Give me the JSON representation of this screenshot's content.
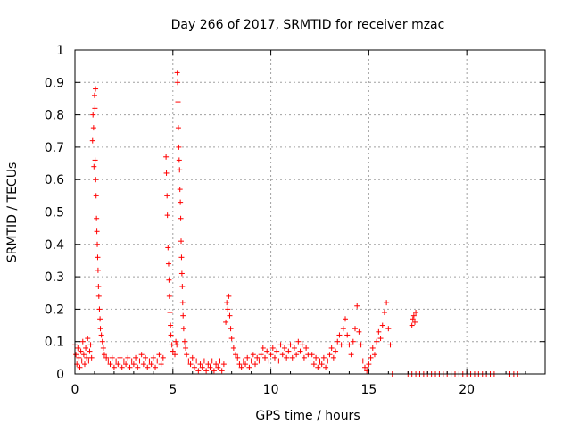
{
  "chart_data": {
    "type": "scatter",
    "title": "Day 266 of 2017, SRMTID for receiver mzac",
    "xlabel": "GPS time / hours",
    "ylabel": "SRMTID / TECUs",
    "xlim": [
      0,
      24
    ],
    "ylim": [
      0,
      1
    ],
    "xticks": [
      0,
      5,
      10,
      15,
      20
    ],
    "xtick_labels": [
      "0",
      "5",
      "10",
      "15",
      "20"
    ],
    "yticks": [
      0,
      0.1,
      0.2,
      0.3,
      0.4,
      0.5,
      0.6,
      0.7,
      0.8,
      0.9,
      1
    ],
    "ytick_labels": [
      "0",
      "0.1",
      "0.2",
      "0.3",
      "0.4",
      "0.5",
      "0.6",
      "0.7",
      "0.8",
      "0.9",
      "1"
    ],
    "grid": true,
    "marker": "+",
    "marker_color": "#ff0000",
    "series": [
      {
        "name": "SRMTID",
        "points": [
          [
            0.0,
            0.09
          ],
          [
            0.05,
            0.06
          ],
          [
            0.1,
            0.03
          ],
          [
            0.15,
            0.08
          ],
          [
            0.2,
            0.05
          ],
          [
            0.25,
            0.02
          ],
          [
            0.3,
            0.07
          ],
          [
            0.35,
            0.04
          ],
          [
            0.4,
            0.1
          ],
          [
            0.45,
            0.06
          ],
          [
            0.5,
            0.03
          ],
          [
            0.55,
            0.08
          ],
          [
            0.6,
            0.05
          ],
          [
            0.65,
            0.11
          ],
          [
            0.7,
            0.04
          ],
          [
            0.75,
            0.07
          ],
          [
            0.8,
            0.09
          ],
          [
            0.85,
            0.05
          ],
          [
            0.9,
            0.72
          ],
          [
            0.92,
            0.8
          ],
          [
            0.95,
            0.76
          ],
          [
            0.97,
            0.64
          ],
          [
            1.0,
            0.86
          ],
          [
            1.02,
            0.82
          ],
          [
            1.03,
            0.66
          ],
          [
            1.05,
            0.88
          ],
          [
            1.06,
            0.6
          ],
          [
            1.08,
            0.55
          ],
          [
            1.1,
            0.48
          ],
          [
            1.12,
            0.44
          ],
          [
            1.14,
            0.4
          ],
          [
            1.16,
            0.36
          ],
          [
            1.18,
            0.32
          ],
          [
            1.2,
            0.27
          ],
          [
            1.22,
            0.24
          ],
          [
            1.25,
            0.2
          ],
          [
            1.28,
            0.17
          ],
          [
            1.3,
            0.14
          ],
          [
            1.35,
            0.12
          ],
          [
            1.4,
            0.1
          ],
          [
            1.45,
            0.08
          ],
          [
            1.5,
            0.06
          ],
          [
            1.6,
            0.05
          ],
          [
            1.7,
            0.04
          ],
          [
            1.8,
            0.03
          ],
          [
            1.9,
            0.05
          ],
          [
            2.0,
            0.02
          ],
          [
            2.1,
            0.04
          ],
          [
            2.2,
            0.03
          ],
          [
            2.3,
            0.05
          ],
          [
            2.4,
            0.02
          ],
          [
            2.5,
            0.04
          ],
          [
            2.6,
            0.03
          ],
          [
            2.7,
            0.05
          ],
          [
            2.8,
            0.02
          ],
          [
            2.9,
            0.04
          ],
          [
            3.0,
            0.03
          ],
          [
            3.1,
            0.05
          ],
          [
            3.2,
            0.02
          ],
          [
            3.3,
            0.04
          ],
          [
            3.4,
            0.06
          ],
          [
            3.5,
            0.03
          ],
          [
            3.6,
            0.05
          ],
          [
            3.7,
            0.02
          ],
          [
            3.8,
            0.04
          ],
          [
            3.9,
            0.03
          ],
          [
            4.0,
            0.05
          ],
          [
            4.1,
            0.02
          ],
          [
            4.2,
            0.04
          ],
          [
            4.3,
            0.06
          ],
          [
            4.4,
            0.03
          ],
          [
            4.5,
            0.05
          ],
          [
            4.65,
            0.67
          ],
          [
            4.67,
            0.62
          ],
          [
            4.7,
            0.55
          ],
          [
            4.72,
            0.49
          ],
          [
            4.75,
            0.39
          ],
          [
            4.78,
            0.34
          ],
          [
            4.8,
            0.29
          ],
          [
            4.82,
            0.24
          ],
          [
            4.85,
            0.19
          ],
          [
            4.88,
            0.15
          ],
          [
            4.9,
            0.12
          ],
          [
            4.95,
            0.09
          ],
          [
            5.0,
            0.07
          ],
          [
            5.1,
            0.06
          ],
          [
            5.15,
            0.1
          ],
          [
            5.2,
            0.09
          ],
          [
            5.22,
            0.93
          ],
          [
            5.24,
            0.9
          ],
          [
            5.26,
            0.84
          ],
          [
            5.28,
            0.76
          ],
          [
            5.3,
            0.7
          ],
          [
            5.32,
            0.66
          ],
          [
            5.34,
            0.63
          ],
          [
            5.36,
            0.57
          ],
          [
            5.38,
            0.53
          ],
          [
            5.4,
            0.48
          ],
          [
            5.42,
            0.41
          ],
          [
            5.44,
            0.36
          ],
          [
            5.46,
            0.31
          ],
          [
            5.48,
            0.27
          ],
          [
            5.5,
            0.22
          ],
          [
            5.52,
            0.18
          ],
          [
            5.55,
            0.14
          ],
          [
            5.6,
            0.1
          ],
          [
            5.65,
            0.08
          ],
          [
            5.7,
            0.06
          ],
          [
            5.8,
            0.04
          ],
          [
            5.9,
            0.03
          ],
          [
            6.0,
            0.05
          ],
          [
            6.1,
            0.02
          ],
          [
            6.2,
            0.04
          ],
          [
            6.3,
            0.01
          ],
          [
            6.4,
            0.03
          ],
          [
            6.5,
            0.02
          ],
          [
            6.6,
            0.04
          ],
          [
            6.7,
            0.01
          ],
          [
            6.8,
            0.03
          ],
          [
            6.9,
            0.02
          ],
          [
            7.0,
            0.04
          ],
          [
            7.1,
            0.01
          ],
          [
            7.2,
            0.03
          ],
          [
            7.3,
            0.02
          ],
          [
            7.4,
            0.04
          ],
          [
            7.5,
            0.01
          ],
          [
            7.6,
            0.03
          ],
          [
            7.7,
            0.16
          ],
          [
            7.75,
            0.22
          ],
          [
            7.8,
            0.2
          ],
          [
            7.85,
            0.24
          ],
          [
            7.9,
            0.18
          ],
          [
            7.95,
            0.14
          ],
          [
            8.0,
            0.11
          ],
          [
            8.1,
            0.08
          ],
          [
            8.2,
            0.06
          ],
          [
            8.3,
            0.05
          ],
          [
            8.4,
            0.03
          ],
          [
            8.5,
            0.02
          ],
          [
            8.6,
            0.04
          ],
          [
            8.7,
            0.03
          ],
          [
            8.8,
            0.05
          ],
          [
            8.9,
            0.02
          ],
          [
            9.0,
            0.04
          ],
          [
            9.1,
            0.06
          ],
          [
            9.2,
            0.03
          ],
          [
            9.3,
            0.05
          ],
          [
            9.4,
            0.04
          ],
          [
            9.5,
            0.06
          ],
          [
            9.6,
            0.08
          ],
          [
            9.7,
            0.05
          ],
          [
            9.8,
            0.07
          ],
          [
            9.9,
            0.04
          ],
          [
            10.0,
            0.06
          ],
          [
            10.1,
            0.08
          ],
          [
            10.2,
            0.05
          ],
          [
            10.3,
            0.07
          ],
          [
            10.4,
            0.04
          ],
          [
            10.5,
            0.09
          ],
          [
            10.6,
            0.06
          ],
          [
            10.7,
            0.08
          ],
          [
            10.8,
            0.05
          ],
          [
            10.9,
            0.07
          ],
          [
            11.0,
            0.09
          ],
          [
            11.1,
            0.05
          ],
          [
            11.2,
            0.08
          ],
          [
            11.3,
            0.06
          ],
          [
            11.4,
            0.1
          ],
          [
            11.5,
            0.07
          ],
          [
            11.6,
            0.09
          ],
          [
            11.7,
            0.05
          ],
          [
            11.8,
            0.08
          ],
          [
            11.9,
            0.06
          ],
          [
            12.0,
            0.04
          ],
          [
            12.1,
            0.06
          ],
          [
            12.2,
            0.03
          ],
          [
            12.3,
            0.05
          ],
          [
            12.4,
            0.02
          ],
          [
            12.5,
            0.04
          ],
          [
            12.6,
            0.03
          ],
          [
            12.7,
            0.05
          ],
          [
            12.8,
            0.02
          ],
          [
            12.9,
            0.04
          ],
          [
            13.0,
            0.06
          ],
          [
            13.1,
            0.08
          ],
          [
            13.2,
            0.05
          ],
          [
            13.3,
            0.07
          ],
          [
            13.4,
            0.1
          ],
          [
            13.5,
            0.12
          ],
          [
            13.6,
            0.09
          ],
          [
            13.7,
            0.14
          ],
          [
            13.8,
            0.17
          ],
          [
            13.9,
            0.12
          ],
          [
            14.0,
            0.09
          ],
          [
            14.1,
            0.06
          ],
          [
            14.2,
            0.1
          ],
          [
            14.3,
            0.14
          ],
          [
            14.4,
            0.21
          ],
          [
            14.5,
            0.13
          ],
          [
            14.6,
            0.09
          ],
          [
            14.7,
            0.04
          ],
          [
            14.8,
            0.02
          ],
          [
            14.9,
            0.01
          ],
          [
            15.0,
            0.03
          ],
          [
            15.1,
            0.05
          ],
          [
            15.2,
            0.08
          ],
          [
            15.3,
            0.06
          ],
          [
            15.4,
            0.1
          ],
          [
            15.5,
            0.13
          ],
          [
            15.6,
            0.11
          ],
          [
            15.7,
            0.15
          ],
          [
            15.8,
            0.19
          ],
          [
            15.9,
            0.22
          ],
          [
            16.0,
            0.14
          ],
          [
            16.1,
            0.09
          ],
          [
            16.2,
            0.0
          ],
          [
            17.2,
            0.15
          ],
          [
            17.25,
            0.17
          ],
          [
            17.3,
            0.18
          ],
          [
            17.35,
            0.16
          ],
          [
            17.4,
            0.19
          ],
          [
            17.0,
            0.0
          ],
          [
            17.2,
            0.0
          ],
          [
            17.4,
            0.0
          ],
          [
            17.6,
            0.0
          ],
          [
            17.8,
            0.0
          ],
          [
            18.0,
            0.0
          ],
          [
            18.2,
            0.0
          ],
          [
            18.4,
            0.0
          ],
          [
            18.6,
            0.0
          ],
          [
            18.8,
            0.0
          ],
          [
            19.0,
            0.0
          ],
          [
            19.2,
            0.0
          ],
          [
            19.4,
            0.0
          ],
          [
            19.6,
            0.0
          ],
          [
            19.8,
            0.0
          ],
          [
            20.0,
            0.0
          ],
          [
            20.2,
            0.0
          ],
          [
            20.4,
            0.0
          ],
          [
            20.6,
            0.0
          ],
          [
            20.8,
            0.0
          ],
          [
            21.0,
            0.0
          ],
          [
            21.2,
            0.0
          ],
          [
            21.4,
            0.0
          ],
          [
            22.2,
            0.0
          ],
          [
            22.4,
            0.0
          ],
          [
            22.6,
            0.0
          ]
        ]
      }
    ]
  }
}
